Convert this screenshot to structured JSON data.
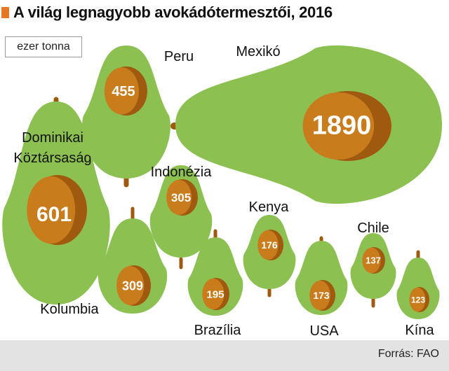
{
  "title": "A világ legnagyobb avokádótermesztői, 2016",
  "unit": "ezer tonna",
  "source": "Forrás: FAO",
  "colors": {
    "accent": "#e87722",
    "flesh": "#8cc152",
    "seed_dark": "#a05a10",
    "seed_light": "#c97c1c",
    "stem": "#a05a10",
    "value_text": "#ffffff",
    "label_text": "#111111",
    "footer_bg": "#e3e3e3"
  },
  "chart_data": {
    "type": "bubble",
    "title": "A világ legnagyobb avokádótermesztői, 2016",
    "unit": "ezer tonna",
    "categories": [
      "Mexikó",
      "Dominikai Köztársaság",
      "Peru",
      "Indonézia",
      "Kolumbia",
      "Brazília",
      "Kenya",
      "USA",
      "Chile",
      "Kína"
    ],
    "values": [
      1890,
      601,
      455,
      305,
      309,
      195,
      176,
      173,
      137,
      123
    ]
  }
}
